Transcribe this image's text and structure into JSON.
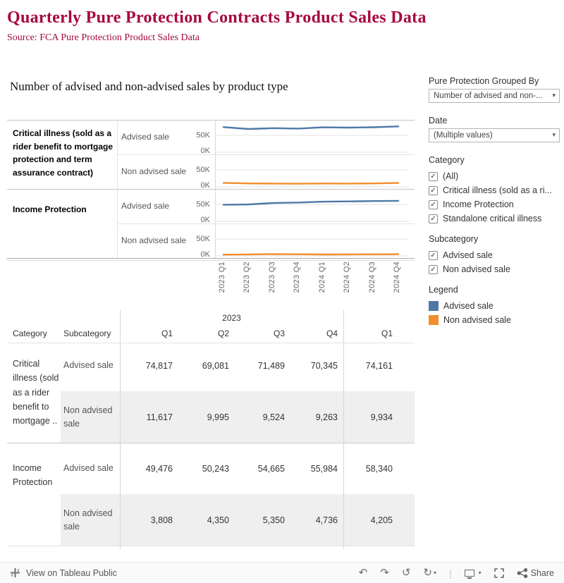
{
  "colors": {
    "title": "#a6093d",
    "advised": "#4e79a7",
    "non_advised": "#f28e2b",
    "zebra": "#efefef"
  },
  "icons": {
    "caret": "▾",
    "check": "✓",
    "undo": "↶",
    "redo": "↷",
    "replay": "↺",
    "refresh": "↻",
    "divider": "|"
  },
  "header": {
    "title": "Quarterly Pure Protection Contracts Product Sales Data",
    "subtitle": "Source: FCA Pure Protection Product Sales Data"
  },
  "chart": {
    "title": "Number of advised and non-advised sales by product type",
    "groups": [
      "Critical illness (sold as a rider benefit to mortgage protection and term assurance contract)",
      "Income Protection"
    ],
    "y_ticks": [
      "50K",
      "0K"
    ]
  },
  "chart_data": {
    "type": "line",
    "x": [
      "2023 Q1",
      "2023 Q2",
      "2023 Q3",
      "2023 Q4",
      "2024 Q1",
      "2024 Q2",
      "2024 Q3",
      "2024 Q4"
    ],
    "ylim": [
      0,
      90000
    ],
    "gridlines": [
      0,
      50000
    ],
    "legend_position": "right",
    "panels": [
      {
        "category": "Critical illness (sold as a rider benefit to mortgage protection and term assurance contract)",
        "series": "Advised sale",
        "color": "#4e79a7",
        "values": [
          74817,
          69081,
          71489,
          70345,
          74161,
          73200,
          74400,
          76800
        ]
      },
      {
        "category": "Critical illness (sold as a rider benefit to mortgage protection and term assurance contract)",
        "series": "Non advised sale",
        "color": "#f28e2b",
        "values": [
          11617,
          9995,
          9524,
          9263,
          9934,
          9600,
          10100,
          11400
        ]
      },
      {
        "category": "Income Protection",
        "series": "Advised sale",
        "color": "#4e79a7",
        "values": [
          49476,
          50243,
          54665,
          55984,
          58340,
          59200,
          60300,
          61000
        ]
      },
      {
        "category": "Income Protection",
        "series": "Non advised sale",
        "color": "#f28e2b",
        "values": [
          3808,
          4350,
          5350,
          4736,
          4205,
          4400,
          4650,
          5100
        ]
      }
    ]
  },
  "filters": {
    "grouped_by_label": "Pure Protection Grouped By",
    "grouped_by_value": "Number of advised and non-...",
    "date_label": "Date",
    "date_value": "(Multiple values)",
    "category_label": "Category",
    "category_items": [
      "(All)",
      "Critical illness (sold as a ri...",
      "Income Protection",
      "Standalone critical illness"
    ],
    "subcategory_label": "Subcategory",
    "subcategory_items": [
      "Advised sale",
      "Non advised sale"
    ],
    "legend_label": "Legend",
    "legend_items": [
      {
        "label": "Advised sale",
        "color": "#4e79a7"
      },
      {
        "label": "Non advised sale",
        "color": "#f28e2b"
      }
    ]
  },
  "table": {
    "year_header": "2023",
    "col_category": "Category",
    "col_subcategory": "Subcategory",
    "quarter_headers": [
      "Q1",
      "Q2",
      "Q3",
      "Q4"
    ],
    "q1_2024_header": "Q1",
    "groups": [
      {
        "category": "Critical illness (sold as a rider benefit to mortgage ..",
        "rows": [
          {
            "subcategory": "Advised sale",
            "values": [
              "74,817",
              "69,081",
              "71,489",
              "70,345"
            ],
            "value_2024": "74,161"
          },
          {
            "subcategory": "Non advised sale",
            "values": [
              "11,617",
              "9,995",
              "9,524",
              "9,263"
            ],
            "value_2024": "9,934"
          }
        ]
      },
      {
        "category": "Income Protection",
        "rows": [
          {
            "subcategory": "Advised sale",
            "values": [
              "49,476",
              "50,243",
              "54,665",
              "55,984"
            ],
            "value_2024": "58,340"
          },
          {
            "subcategory": "Non advised sale",
            "values": [
              "3,808",
              "4,350",
              "5,350",
              "4,736"
            ],
            "value_2024": "4,205"
          }
        ]
      }
    ]
  },
  "footer": {
    "view_label": "View on Tableau Public",
    "share_label": "Share"
  }
}
